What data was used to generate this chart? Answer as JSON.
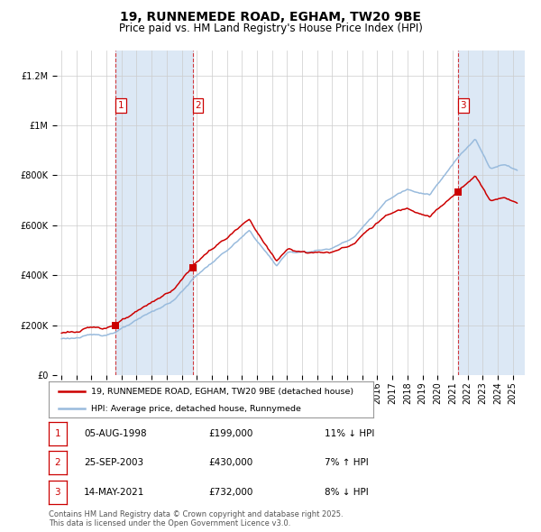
{
  "title": "19, RUNNEMEDE ROAD, EGHAM, TW20 9BE",
  "subtitle": "Price paid vs. HM Land Registry's House Price Index (HPI)",
  "legend_line1": "19, RUNNEMEDE ROAD, EGHAM, TW20 9BE (detached house)",
  "legend_line2": "HPI: Average price, detached house, Runnymede",
  "ylim": [
    0,
    1300000
  ],
  "yticks": [
    0,
    200000,
    400000,
    600000,
    800000,
    1000000,
    1200000
  ],
  "ytick_labels": [
    "£0",
    "£200K",
    "£400K",
    "£600K",
    "£800K",
    "£1M",
    "£1.2M"
  ],
  "xlim_start": 1994.7,
  "xlim_end": 2025.8,
  "red_color": "#cc0000",
  "blue_color": "#99bbdd",
  "shade_color": "#dce8f5",
  "vline_dates": [
    1998.6,
    2003.73,
    2021.37
  ],
  "sale_dates": [
    1998.6,
    2003.73,
    2021.37
  ],
  "sale_prices": [
    199000,
    430000,
    732000
  ],
  "sale_nums": [
    1,
    2,
    3
  ],
  "table_rows": [
    {
      "num": "1",
      "date": "05-AUG-1998",
      "price": "£199,000",
      "hpi": "11% ↓ HPI"
    },
    {
      "num": "2",
      "date": "25-SEP-2003",
      "price": "£430,000",
      "hpi": "7% ↑ HPI"
    },
    {
      "num": "3",
      "date": "14-MAY-2021",
      "price": "£732,000",
      "hpi": "8% ↓ HPI"
    }
  ],
  "footnote": "Contains HM Land Registry data © Crown copyright and database right 2025.\nThis data is licensed under the Open Government Licence v3.0.",
  "title_fontsize": 10,
  "subtitle_fontsize": 8.5,
  "tick_fontsize": 7,
  "label_fontsize": 7.5
}
